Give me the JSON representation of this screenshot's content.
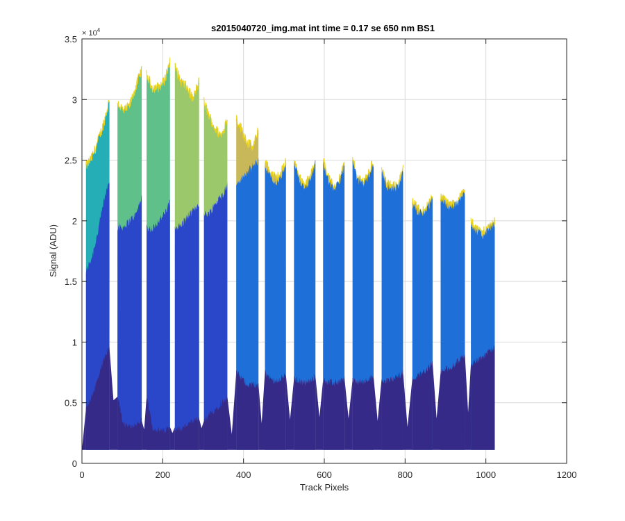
{
  "chart_data": {
    "type": "area",
    "title": "s2015040720_img.mat int time = 0.17 se  650 nm BS1",
    "xlabel": "Track Pixels",
    "ylabel": "Signal (ADU)",
    "xlim": [
      0,
      1200
    ],
    "ylim": [
      0,
      35000
    ],
    "y_exponent_label": "× 10",
    "y_exponent_power": "4",
    "x_ticks": [
      "0",
      "200",
      "400",
      "600",
      "800",
      "1000",
      "1200"
    ],
    "y_ticks": [
      "0",
      "0.5",
      "1",
      "1.5",
      "2",
      "2.5",
      "3",
      "3.5"
    ],
    "grid": true,
    "plateaus": [
      {
        "x_start": 10,
        "x_end": 68,
        "top": [
          24500,
          25200,
          26500,
          28000,
          30000
        ],
        "mid": [
          15800,
          17000,
          19000,
          21500,
          23500
        ],
        "low": [
          4500,
          5500,
          7000,
          8500,
          9500
        ]
      },
      {
        "x_start": 88,
        "x_end": 148,
        "top": [
          29800,
          29000,
          29500,
          31000,
          32500
        ],
        "mid": [
          19500,
          19500,
          20000,
          20500,
          22000
        ],
        "low": [
          5500,
          3200,
          3000,
          3200,
          3500
        ]
      },
      {
        "x_start": 160,
        "x_end": 218,
        "top": [
          32000,
          31000,
          31000,
          31500,
          33200
        ],
        "mid": [
          19500,
          19300,
          20000,
          20500,
          21500
        ],
        "low": [
          5500,
          3000,
          2700,
          2700,
          3000
        ]
      },
      {
        "x_start": 230,
        "x_end": 290,
        "top": [
          32700,
          31500,
          31000,
          30000,
          31500
        ],
        "mid": [
          19500,
          19600,
          20300,
          20800,
          21500
        ],
        "low": [
          3000,
          2800,
          3200,
          3400,
          3700
        ]
      },
      {
        "x_start": 302,
        "x_end": 360,
        "top": [
          29800,
          28500,
          27500,
          27000,
          28500
        ],
        "mid": [
          20500,
          20700,
          21500,
          22000,
          23000
        ],
        "low": [
          3500,
          4000,
          4500,
          5000,
          5500
        ]
      },
      {
        "x_start": 382,
        "x_end": 437,
        "top": [
          28500,
          27500,
          26500,
          26000,
          27500
        ],
        "mid": [
          23000,
          23500,
          24000,
          24500,
          25000
        ],
        "low": [
          7500,
          7000,
          6500,
          6500,
          6500
        ]
      },
      {
        "x_start": 453,
        "x_end": 505,
        "top": [
          25000,
          24000,
          23500,
          23800,
          25000
        ],
        "mid": [
          24500,
          23700,
          23000,
          23500,
          24500
        ],
        "low": [
          7500,
          7000,
          6800,
          7000,
          7300
        ]
      },
      {
        "x_start": 525,
        "x_end": 578,
        "top": [
          25000,
          23500,
          23000,
          23500,
          25000
        ],
        "mid": [
          24800,
          23300,
          22800,
          23300,
          24800
        ],
        "low": [
          7000,
          6800,
          6600,
          6800,
          7200
        ]
      },
      {
        "x_start": 597,
        "x_end": 650,
        "top": [
          25000,
          23500,
          22800,
          23300,
          24800
        ],
        "mid": [
          24800,
          23300,
          22600,
          23100,
          24600
        ],
        "low": [
          6900,
          6700,
          6600,
          6800,
          7000
        ]
      },
      {
        "x_start": 670,
        "x_end": 722,
        "top": [
          25000,
          23500,
          23300,
          23800,
          25000
        ],
        "mid": [
          24800,
          23300,
          23100,
          23600,
          24800
        ],
        "low": [
          6900,
          6700,
          6700,
          6900,
          7100
        ]
      },
      {
        "x_start": 742,
        "x_end": 795,
        "top": [
          24200,
          23000,
          22800,
          23000,
          24200
        ],
        "mid": [
          24000,
          22800,
          22600,
          22800,
          24000
        ],
        "low": [
          7000,
          6800,
          7000,
          7200,
          7500
        ]
      },
      {
        "x_start": 818,
        "x_end": 868,
        "top": [
          21500,
          21000,
          20800,
          21200,
          22000
        ],
        "mid": [
          21300,
          20800,
          20600,
          21000,
          21800
        ],
        "low": [
          7000,
          7200,
          7500,
          7800,
          8300
        ]
      },
      {
        "x_start": 888,
        "x_end": 948,
        "top": [
          22000,
          21500,
          21300,
          21800,
          22500
        ],
        "mid": [
          21800,
          21300,
          21100,
          21600,
          22300
        ],
        "low": [
          7500,
          7800,
          8000,
          8500,
          9000
        ]
      },
      {
        "x_start": 963,
        "x_end": 1022,
        "top": [
          20000,
          19300,
          19000,
          19500,
          20000
        ],
        "mid": [
          19800,
          19100,
          18800,
          19300,
          19800
        ],
        "low": [
          8200,
          8500,
          8800,
          9200,
          9500
        ]
      }
    ],
    "baseline": 1100,
    "trough_levels": [
      {
        "x": 0,
        "low": 1100
      },
      {
        "x": 78,
        "low": 5200
      },
      {
        "x": 154,
        "low": 2800
      },
      {
        "x": 224,
        "low": 2500
      },
      {
        "x": 296,
        "low": 2900
      },
      {
        "x": 371,
        "low": 2400
      },
      {
        "x": 445,
        "low": 3300
      },
      {
        "x": 515,
        "low": 3600
      },
      {
        "x": 588,
        "low": 3800
      },
      {
        "x": 660,
        "low": 3700
      },
      {
        "x": 732,
        "low": 3500
      },
      {
        "x": 806,
        "low": 3000
      },
      {
        "x": 878,
        "low": 3700
      },
      {
        "x": 956,
        "low": 4200
      },
      {
        "x": 1022,
        "low": 1100
      }
    ],
    "colors": {
      "axis": "#262626",
      "grid": "#d9d9d9",
      "bottom_band": "#352a87",
      "mid_band_left": "#2a47c9",
      "mid_band_right": "#1f6fd8",
      "top_teal": "#25aeb5",
      "top_green": "#5fc08a",
      "top_lightgreen": "#9bc86a",
      "top_olive": "#c8b85a",
      "edge_yellow": "#e8d21e"
    }
  }
}
